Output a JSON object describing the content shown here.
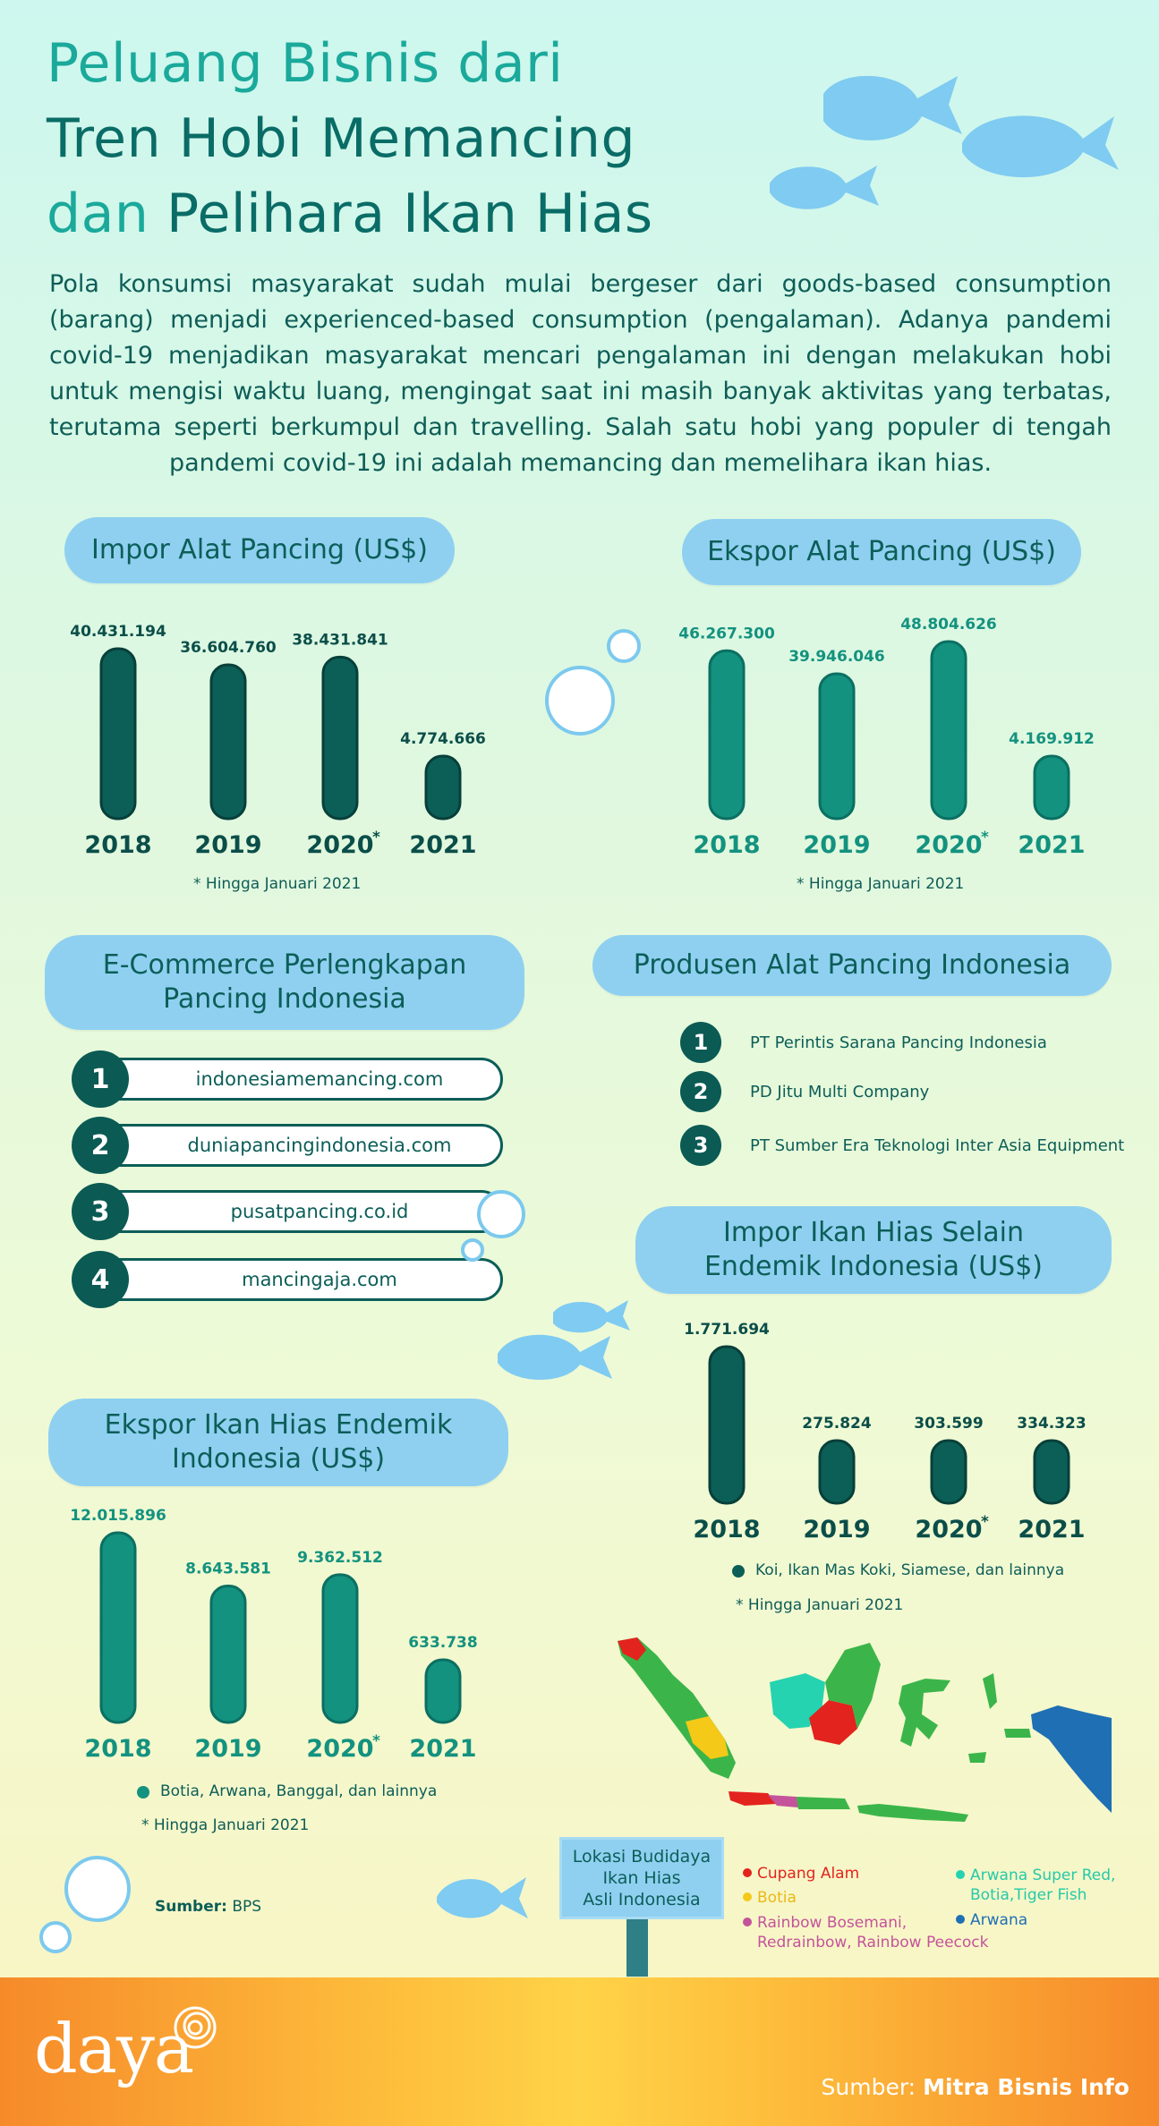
{
  "title": {
    "line1": "Peluang Bisnis dari",
    "line2": "Tren Hobi Memancing",
    "line3_accent": "dan",
    "line3_rest": " Pelihara Ikan Hias"
  },
  "intro": "Pola konsumsi masyarakat sudah mulai bergeser dari goods-based consumption (barang) menjadi experienced-based consumption (pengalaman). Adanya pandemi covid-19 menjadikan masyarakat mencari pengalaman ini dengan melakukan hobi untuk mengisi waktu luang, mengingat saat ini masih banyak aktivitas yang terbatas, terutama seperti berkumpul dan travelling. Salah satu hobi yang populer di tengah pandemi covid-19 ini adalah memancing dan memelihara ikan hias.",
  "colors": {
    "dark_bar": "#0b5f57",
    "teal_bar": "#13927f",
    "pill": "#8fd0f1"
  },
  "chart_data": [
    {
      "id": "impor_alat",
      "type": "bar",
      "title": "Impor Alat Pancing (US$)",
      "categories": [
        "2018",
        "2019",
        "2020",
        "2021"
      ],
      "values": [
        40431194,
        36604760,
        38431841,
        4774666
      ],
      "value_labels": [
        "40.431.194",
        "36.604.760",
        "38.431.841",
        "4.774.666"
      ],
      "footnote": "Hingga Januari 2021"
    },
    {
      "id": "ekspor_alat",
      "type": "bar",
      "title": "Ekspor Alat Pancing (US$)",
      "categories": [
        "2018",
        "2019",
        "2020",
        "2021"
      ],
      "values": [
        46267300,
        39946046,
        48804626,
        4169912
      ],
      "value_labels": [
        "46.267.300",
        "39.946.046",
        "48.804.626",
        "4.169.912"
      ],
      "footnote": "Hingga Januari 2021"
    },
    {
      "id": "impor_ikan",
      "type": "bar",
      "title": "Impor Ikan Hias Selain Endemik Indonesia (US$)",
      "categories": [
        "2018",
        "2019",
        "2020",
        "2021"
      ],
      "values": [
        1771694,
        275824,
        303599,
        334323
      ],
      "value_labels": [
        "1.771.694",
        "275.824",
        "303.599",
        "334.323"
      ],
      "legend": "Koi, Ikan Mas Koki, Siamese, dan lainnya",
      "footnote": "Hingga Januari 2021"
    },
    {
      "id": "ekspor_ikan",
      "type": "bar",
      "title": "Ekspor Ikan Hias Endemik Indonesia (US$)",
      "categories": [
        "2018",
        "2019",
        "2020",
        "2021"
      ],
      "values": [
        12015896,
        8643581,
        9362512,
        633738
      ],
      "value_labels": [
        "12.015.896",
        "8.643.581",
        "9.362.512",
        "633.738"
      ],
      "legend": "Botia, Arwana, Banggal, dan lainnya",
      "footnote": "Hingga Januari 2021"
    }
  ],
  "ecommerce": {
    "title_l1": "E-Commerce Perlengkapan",
    "title_l2": "Pancing Indonesia",
    "items": [
      {
        "num": "1",
        "label": "indonesiamemancing.com"
      },
      {
        "num": "2",
        "label": "duniapancingindonesia.com"
      },
      {
        "num": "3",
        "label": "pusatpancing.co.id"
      },
      {
        "num": "4",
        "label": "mancingaja.com"
      }
    ]
  },
  "producers": {
    "title": "Produsen Alat Pancing Indonesia",
    "items": [
      {
        "num": "1",
        "label": "PT Perintis Sarana Pancing Indonesia"
      },
      {
        "num": "2",
        "label": "PD Jitu Multi Company"
      },
      {
        "num": "3",
        "label": "PT Sumber Era Teknologi Inter Asia Equipment"
      }
    ]
  },
  "source_bps": {
    "label": "Sumber:",
    "value": "BPS"
  },
  "map": {
    "sign_l1": "Lokasi Budidaya",
    "sign_l2": "Ikan Hias",
    "sign_l3": "Asli Indonesia",
    "legend": [
      {
        "label": "Cupang Alam",
        "color": "#e3231e"
      },
      {
        "label": "Botia",
        "color": "#f4c917"
      },
      {
        "label": "Rainbow Bosemani,",
        "label2": "Redrainbow, Rainbow Peecock",
        "color": "#c4539b"
      },
      {
        "label": "Arwana Super Red,",
        "label2": "Botia,Tiger Fish",
        "color": "#25d3b0"
      },
      {
        "label": "Arwana",
        "color": "#1e6fb3"
      }
    ]
  },
  "footer": {
    "logo": "daya",
    "source_label": "Sumber:",
    "source_value": "Mitra Bisnis Info"
  }
}
